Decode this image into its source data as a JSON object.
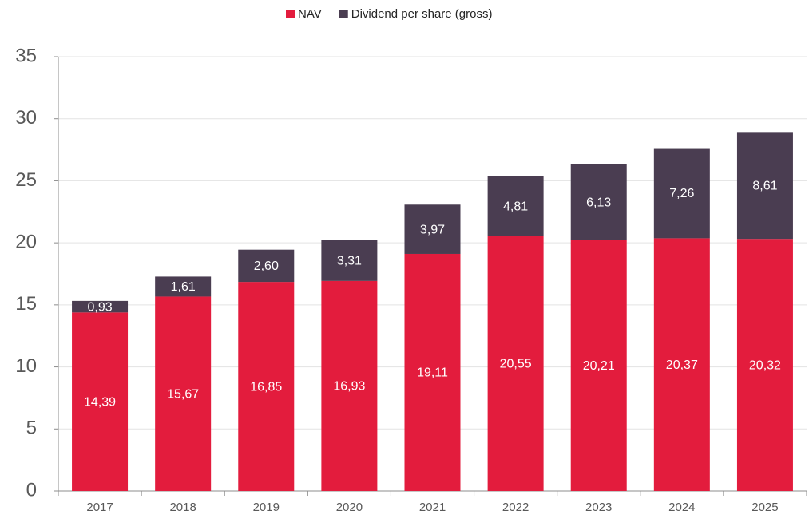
{
  "chart_data": {
    "type": "stacked_bar",
    "categories": [
      "2017",
      "2018",
      "2019",
      "2020",
      "2021",
      "2022",
      "2023",
      "2024",
      "2025"
    ],
    "series": [
      {
        "name": "NAV",
        "color": "#e31c3d",
        "values": [
          14.39,
          15.67,
          16.85,
          16.93,
          19.11,
          20.55,
          20.21,
          20.37,
          20.32
        ],
        "value_labels": [
          "14,39",
          "15,67",
          "16,85",
          "16,93",
          "19,11",
          "20,55",
          "20,21",
          "20,37",
          "20,32"
        ]
      },
      {
        "name": "Dividend per share (gross)",
        "color": "#4a3d51",
        "values": [
          0.93,
          1.61,
          2.6,
          3.31,
          3.97,
          4.81,
          6.13,
          7.26,
          8.61
        ],
        "value_labels": [
          "0,93",
          "1,61",
          "2,60",
          "3,31",
          "3,97",
          "4,81",
          "6,13",
          "7,26",
          "8,61"
        ]
      }
    ],
    "ylim": [
      0,
      35
    ],
    "yticks": [
      0,
      5,
      10,
      15,
      20,
      25,
      30,
      35
    ],
    "grid": true,
    "legend": "top"
  }
}
